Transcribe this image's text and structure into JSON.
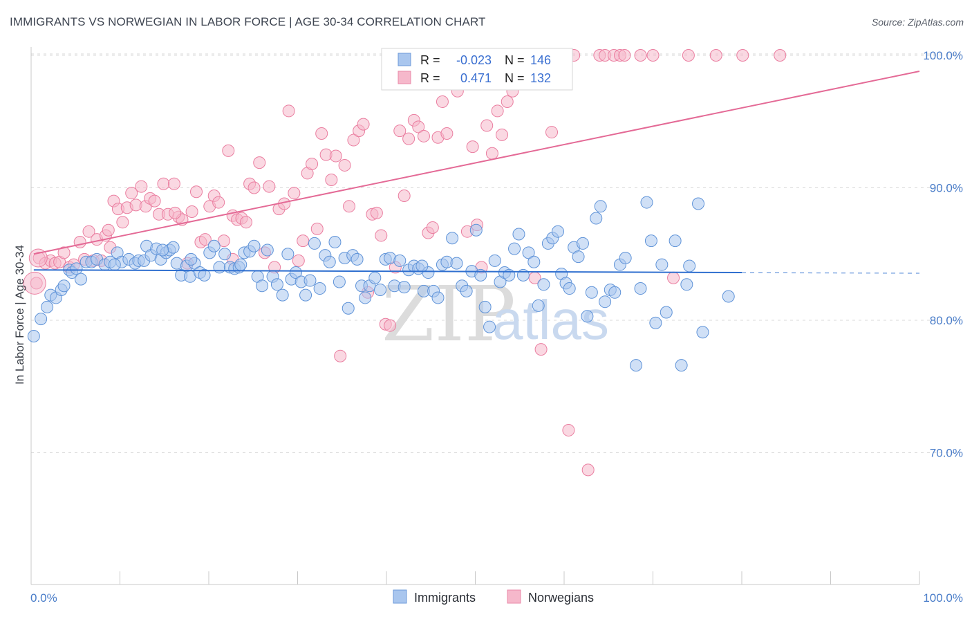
{
  "header": {
    "title": "IMMIGRANTS VS NORWEGIAN IN LABOR FORCE | AGE 30-34 CORRELATION CHART",
    "source": "Source: ZipAtlas.com"
  },
  "watermark": {
    "zip": "ZIP",
    "atlas": "atlas"
  },
  "legend_box": {
    "rows": [
      {
        "r_label": "R =",
        "r_value": "-0.023",
        "n_label": "N =",
        "n_value": "146",
        "color": "#a9c6ee"
      },
      {
        "r_label": "R =",
        "r_value": "0.471",
        "n_label": "N =",
        "n_value": "132",
        "color": "#f6b8cb"
      }
    ]
  },
  "bottom_legend": {
    "items": [
      {
        "label": "Immigrants",
        "color": "#a9c6ee"
      },
      {
        "label": "Norwegians",
        "color": "#f6b8cb"
      }
    ]
  },
  "colors": {
    "blue_fill": "#a9c6ee",
    "blue_stroke": "#5f93d8",
    "blue_line": "#2f6fcf",
    "pink_fill": "#f6b8cb",
    "pink_stroke": "#ea7ea0",
    "pink_line": "#e46a96",
    "grid": "#d9d9d9",
    "axis_text": "#4a7dc9"
  },
  "chart_data": {
    "type": "scatter",
    "title": "IMMIGRANTS VS NORWEGIAN IN LABOR FORCE | AGE 30-34 CORRELATION CHART",
    "ylabel": "In Labor Force | Age 30-34",
    "xlabel": "",
    "xlim": [
      0,
      100
    ],
    "ylim": [
      60,
      101.5
    ],
    "x_tick_labels": [
      "0.0%",
      "100.0%"
    ],
    "y_tick_labels": [
      "70.0%",
      "80.0%",
      "90.0%",
      "100.0%"
    ],
    "y_ticks": [
      70,
      80,
      90,
      100
    ],
    "grid": true,
    "legend_position": "top-center",
    "series": [
      {
        "name": "Immigrants",
        "r": -0.023,
        "n": 146,
        "trend": {
          "x0": 0.3,
          "y0": 83.8,
          "x1": 80,
          "y1": 83.6,
          "dashed_to_x": 100
        },
        "points": [
          [
            0.3,
            78.8
          ],
          [
            1.1,
            80.1
          ],
          [
            1.8,
            81.0
          ],
          [
            2.2,
            81.9
          ],
          [
            2.8,
            81.7
          ],
          [
            3.4,
            82.3
          ],
          [
            3.7,
            82.6
          ],
          [
            4.3,
            83.8
          ],
          [
            4.6,
            83.6
          ],
          [
            5.1,
            83.9
          ],
          [
            5.6,
            83.1
          ],
          [
            6.2,
            84.4
          ],
          [
            6.8,
            84.4
          ],
          [
            7.4,
            84.6
          ],
          [
            8.3,
            84.2
          ],
          [
            8.9,
            84.4
          ],
          [
            9.7,
            85.1
          ],
          [
            10.2,
            84.4
          ],
          [
            11.0,
            84.6
          ],
          [
            11.7,
            84.3
          ],
          [
            12.1,
            84.5
          ],
          [
            12.7,
            84.5
          ],
          [
            13.0,
            85.6
          ],
          [
            13.5,
            84.9
          ],
          [
            14.1,
            85.4
          ],
          [
            14.6,
            84.6
          ],
          [
            15.2,
            85.1
          ],
          [
            15.6,
            85.3
          ],
          [
            16.0,
            85.5
          ],
          [
            16.4,
            84.3
          ],
          [
            16.9,
            83.4
          ],
          [
            17.5,
            84.1
          ],
          [
            17.9,
            83.3
          ],
          [
            18.4,
            84.3
          ],
          [
            19.0,
            83.6
          ],
          [
            19.5,
            83.4
          ],
          [
            20.1,
            85.1
          ],
          [
            20.6,
            85.6
          ],
          [
            21.2,
            84.0
          ],
          [
            21.8,
            85.0
          ],
          [
            22.4,
            84.0
          ],
          [
            22.9,
            83.9
          ],
          [
            23.4,
            84.0
          ],
          [
            24.0,
            85.1
          ],
          [
            24.6,
            85.2
          ],
          [
            25.1,
            85.6
          ],
          [
            25.5,
            83.3
          ],
          [
            26.0,
            82.6
          ],
          [
            26.6,
            85.3
          ],
          [
            27.2,
            83.3
          ],
          [
            27.7,
            82.7
          ],
          [
            28.3,
            81.9
          ],
          [
            28.9,
            85.0
          ],
          [
            29.3,
            83.1
          ],
          [
            29.8,
            83.6
          ],
          [
            30.4,
            82.9
          ],
          [
            30.9,
            81.9
          ],
          [
            31.4,
            83.0
          ],
          [
            31.9,
            85.8
          ],
          [
            32.5,
            82.4
          ],
          [
            33.1,
            84.9
          ],
          [
            33.6,
            84.4
          ],
          [
            34.2,
            85.9
          ],
          [
            34.7,
            82.9
          ],
          [
            35.3,
            84.7
          ],
          [
            35.7,
            80.9
          ],
          [
            36.2,
            84.9
          ],
          [
            36.7,
            84.6
          ],
          [
            37.2,
            82.6
          ],
          [
            37.6,
            81.7
          ],
          [
            38.1,
            82.6
          ],
          [
            38.7,
            83.2
          ],
          [
            39.3,
            82.3
          ],
          [
            39.9,
            84.6
          ],
          [
            40.4,
            84.7
          ],
          [
            40.9,
            82.6
          ],
          [
            41.5,
            84.5
          ],
          [
            42.0,
            82.5
          ],
          [
            42.5,
            83.8
          ],
          [
            43.1,
            84.1
          ],
          [
            43.6,
            83.9
          ],
          [
            44.2,
            82.2
          ],
          [
            44.7,
            83.6
          ],
          [
            45.3,
            82.2
          ],
          [
            45.8,
            81.7
          ],
          [
            46.3,
            84.2
          ],
          [
            46.8,
            84.4
          ],
          [
            47.4,
            86.2
          ],
          [
            47.9,
            84.3
          ],
          [
            48.5,
            82.6
          ],
          [
            49.0,
            82.2
          ],
          [
            49.6,
            83.7
          ],
          [
            50.1,
            86.8
          ],
          [
            50.6,
            83.4
          ],
          [
            51.1,
            81.0
          ],
          [
            51.6,
            79.5
          ],
          [
            52.2,
            84.5
          ],
          [
            52.8,
            82.9
          ],
          [
            53.3,
            83.6
          ],
          [
            53.8,
            83.4
          ],
          [
            54.4,
            85.4
          ],
          [
            54.9,
            86.5
          ],
          [
            55.4,
            83.4
          ],
          [
            56.0,
            85.1
          ],
          [
            56.6,
            84.4
          ],
          [
            57.1,
            81.1
          ],
          [
            57.7,
            82.7
          ],
          [
            58.2,
            85.8
          ],
          [
            58.7,
            86.2
          ],
          [
            59.3,
            86.7
          ],
          [
            59.7,
            83.5
          ],
          [
            60.2,
            82.8
          ],
          [
            60.6,
            82.4
          ],
          [
            61.1,
            85.5
          ],
          [
            61.6,
            84.8
          ],
          [
            62.1,
            85.8
          ],
          [
            62.6,
            80.3
          ],
          [
            63.1,
            82.1
          ],
          [
            63.6,
            87.7
          ],
          [
            64.1,
            88.6
          ],
          [
            64.6,
            81.4
          ],
          [
            65.2,
            82.3
          ],
          [
            65.7,
            82.1
          ],
          [
            66.3,
            84.2
          ],
          [
            66.9,
            84.7
          ],
          [
            68.1,
            76.6
          ],
          [
            68.6,
            82.4
          ],
          [
            69.3,
            88.9
          ],
          [
            69.8,
            86.0
          ],
          [
            70.3,
            79.8
          ],
          [
            71.0,
            84.2
          ],
          [
            71.5,
            80.6
          ],
          [
            72.5,
            86.0
          ],
          [
            73.2,
            76.6
          ],
          [
            73.8,
            82.7
          ],
          [
            74.1,
            84.1
          ],
          [
            75.1,
            88.8
          ],
          [
            75.6,
            79.1
          ],
          [
            78.5,
            81.8
          ],
          [
            44.0,
            84.1
          ],
          [
            23.6,
            84.2
          ],
          [
            18.0,
            84.6
          ],
          [
            9.4,
            84.2
          ],
          [
            14.8,
            85.3
          ]
        ]
      },
      {
        "name": "Norwegians",
        "r": 0.471,
        "n": 132,
        "trend": {
          "x0": 0.3,
          "y0": 85.0,
          "x1": 100,
          "y1": 98.8
        },
        "points": [
          [
            0.6,
            82.8
          ],
          [
            0.9,
            84.7
          ],
          [
            1.6,
            84.3
          ],
          [
            2.2,
            84.5
          ],
          [
            2.7,
            84.3
          ],
          [
            3.2,
            84.4
          ],
          [
            3.7,
            85.1
          ],
          [
            4.3,
            84.0
          ],
          [
            4.8,
            84.2
          ],
          [
            5.5,
            85.9
          ],
          [
            6.0,
            84.6
          ],
          [
            6.5,
            86.7
          ],
          [
            7.0,
            84.5
          ],
          [
            7.4,
            86.1
          ],
          [
            7.9,
            84.5
          ],
          [
            8.4,
            86.4
          ],
          [
            8.7,
            86.8
          ],
          [
            9.3,
            89.0
          ],
          [
            9.8,
            88.4
          ],
          [
            10.3,
            87.4
          ],
          [
            10.8,
            88.5
          ],
          [
            11.3,
            89.6
          ],
          [
            11.8,
            88.7
          ],
          [
            12.4,
            90.1
          ],
          [
            12.9,
            88.6
          ],
          [
            13.4,
            89.2
          ],
          [
            13.9,
            89.0
          ],
          [
            14.4,
            88.0
          ],
          [
            14.9,
            90.3
          ],
          [
            15.4,
            88.0
          ],
          [
            16.1,
            90.3
          ],
          [
            16.6,
            87.8
          ],
          [
            17.0,
            87.6
          ],
          [
            17.6,
            84.3
          ],
          [
            18.1,
            88.2
          ],
          [
            18.6,
            89.7
          ],
          [
            19.1,
            85.9
          ],
          [
            19.6,
            86.1
          ],
          [
            20.1,
            88.6
          ],
          [
            20.6,
            89.4
          ],
          [
            21.1,
            88.9
          ],
          [
            21.7,
            86.0
          ],
          [
            22.2,
            92.8
          ],
          [
            22.7,
            87.9
          ],
          [
            23.2,
            87.6
          ],
          [
            23.7,
            87.7
          ],
          [
            24.2,
            87.4
          ],
          [
            24.6,
            90.3
          ],
          [
            25.1,
            90.0
          ],
          [
            25.7,
            91.9
          ],
          [
            26.3,
            85.1
          ],
          [
            26.8,
            90.1
          ],
          [
            27.4,
            84.0
          ],
          [
            27.9,
            88.4
          ],
          [
            28.5,
            88.8
          ],
          [
            29.0,
            95.8
          ],
          [
            29.6,
            89.6
          ],
          [
            30.1,
            84.5
          ],
          [
            30.6,
            86.0
          ],
          [
            31.1,
            91.1
          ],
          [
            31.6,
            91.8
          ],
          [
            32.2,
            86.9
          ],
          [
            32.7,
            94.1
          ],
          [
            33.2,
            92.5
          ],
          [
            33.8,
            90.6
          ],
          [
            34.3,
            92.4
          ],
          [
            34.8,
            77.3
          ],
          [
            35.3,
            91.7
          ],
          [
            35.8,
            88.6
          ],
          [
            36.3,
            93.6
          ],
          [
            36.9,
            94.3
          ],
          [
            37.4,
            94.8
          ],
          [
            37.9,
            82.1
          ],
          [
            38.4,
            88.0
          ],
          [
            38.9,
            88.1
          ],
          [
            39.4,
            86.4
          ],
          [
            39.9,
            79.7
          ],
          [
            40.4,
            79.6
          ],
          [
            41.0,
            84.0
          ],
          [
            41.5,
            94.3
          ],
          [
            42.0,
            89.4
          ],
          [
            42.5,
            93.7
          ],
          [
            43.1,
            95.1
          ],
          [
            43.6,
            94.6
          ],
          [
            44.2,
            93.9
          ],
          [
            44.7,
            86.6
          ],
          [
            45.2,
            87.0
          ],
          [
            45.8,
            93.8
          ],
          [
            46.3,
            96.5
          ],
          [
            46.8,
            94.1
          ],
          [
            47.4,
            98.4
          ],
          [
            48.0,
            97.3
          ],
          [
            48.5,
            100.0
          ],
          [
            49.1,
            86.7
          ],
          [
            49.7,
            93.1
          ],
          [
            50.2,
            87.2
          ],
          [
            50.7,
            84.0
          ],
          [
            51.3,
            94.7
          ],
          [
            51.9,
            92.6
          ],
          [
            52.5,
            95.8
          ],
          [
            53.0,
            94.0
          ],
          [
            53.6,
            96.5
          ],
          [
            54.2,
            97.3
          ],
          [
            54.9,
            100.0
          ],
          [
            55.4,
            98.5
          ],
          [
            55.9,
            100.0
          ],
          [
            56.7,
            83.2
          ],
          [
            57.4,
            77.8
          ],
          [
            58.0,
            98.9
          ],
          [
            58.6,
            94.2
          ],
          [
            59.4,
            100.0
          ],
          [
            60.1,
            100.0
          ],
          [
            60.5,
            71.7
          ],
          [
            61.1,
            100.0
          ],
          [
            62.7,
            68.7
          ],
          [
            64.0,
            100.0
          ],
          [
            64.6,
            100.0
          ],
          [
            65.6,
            100.0
          ],
          [
            66.3,
            100.0
          ],
          [
            66.8,
            100.0
          ],
          [
            68.6,
            100.0
          ],
          [
            70.0,
            100.0
          ],
          [
            72.3,
            83.2
          ],
          [
            74.0,
            100.0
          ],
          [
            77.1,
            100.0
          ],
          [
            80.1,
            100.0
          ],
          [
            84.3,
            100.0
          ],
          [
            16.2,
            88.1
          ],
          [
            22.7,
            84.6
          ],
          [
            8.9,
            85.5
          ]
        ]
      }
    ]
  }
}
